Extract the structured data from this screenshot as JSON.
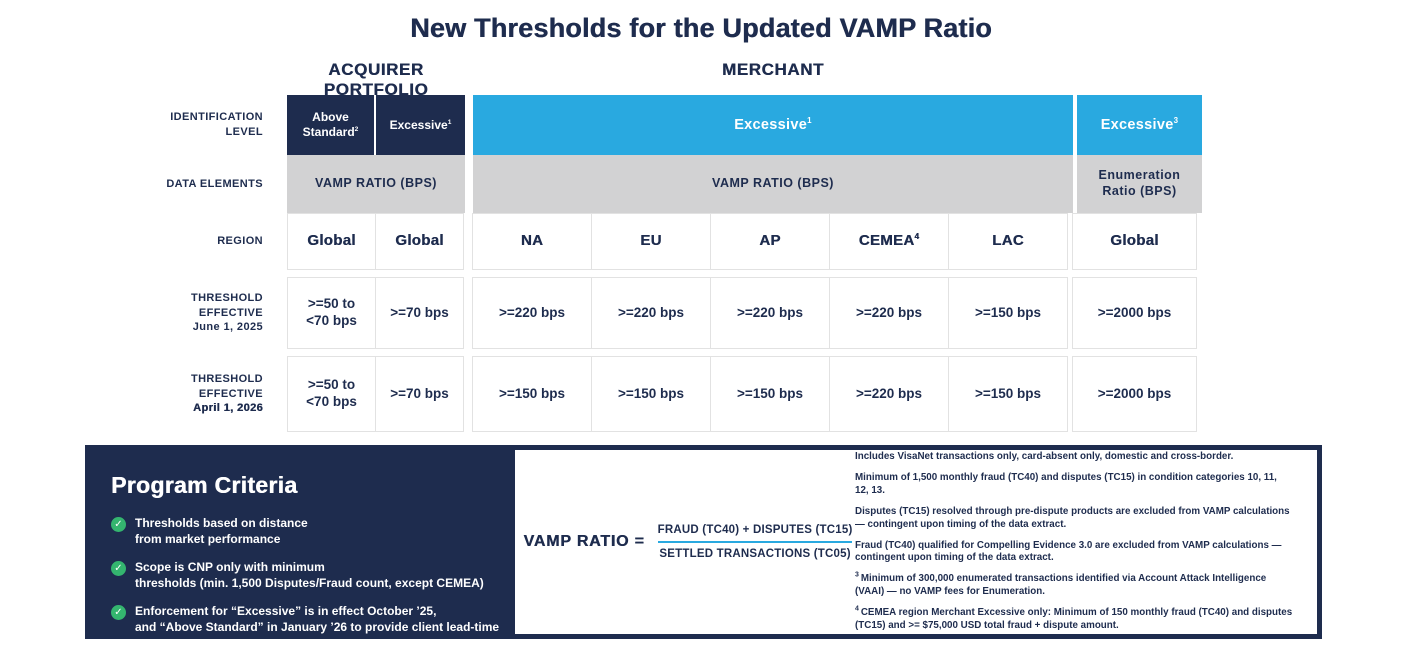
{
  "title": "New Thresholds for the Updated VAMP Ratio",
  "colors": {
    "navy": "#1E2C4E",
    "blue": "#29A9E0",
    "gray": "#D2D2D3",
    "green": "#34B56F",
    "white": "#FFFFFF"
  },
  "table": {
    "group_headers": {
      "acquirer": "ACQUIRER PORTFOLIO",
      "merchant": "MERCHANT"
    },
    "row_labels": {
      "identification_line1": "IDENTIFICATION",
      "identification_line2": "LEVEL",
      "data_elements": "DATA ELEMENTS",
      "region": "REGION",
      "threshold_line1": "THRESHOLD",
      "threshold_line2": "EFFECTIVE",
      "june_date": "June 1, 2025",
      "april_date": "April 1, 2026"
    },
    "identification_row": {
      "above_standard": {
        "text": "Above Standard",
        "sup": "2"
      },
      "acquirer_excessive": {
        "text": "Excessive",
        "sup": "1"
      },
      "merchant_excessive": {
        "text": "Excessive",
        "sup": "1"
      },
      "enum_excessive": {
        "text": "Excessive",
        "sup": "3"
      }
    },
    "data_elements_row": {
      "acquirer": "VAMP RATIO (BPS)",
      "merchant": "VAMP RATIO (BPS)",
      "enumeration": "Enumeration Ratio (BPS)"
    },
    "region_row": [
      {
        "text": "Global"
      },
      {
        "text": "Global"
      },
      {
        "text": "NA"
      },
      {
        "text": "EU"
      },
      {
        "text": "AP"
      },
      {
        "text": "CEMEA",
        "sup": "4"
      },
      {
        "text": "LAC"
      },
      {
        "text": "Global"
      }
    ],
    "june_row": [
      ">=50 to <70 bps",
      ">=70 bps",
      ">=220 bps",
      ">=220 bps",
      ">=220 bps",
      ">=220 bps",
      ">=150 bps",
      ">=2000 bps"
    ],
    "april_row": [
      ">=50 to <70 bps",
      ">=70 bps",
      ">=150 bps",
      ">=150 bps",
      ">=150 bps",
      ">=220 bps",
      ">=150 bps",
      ">=2000 bps"
    ]
  },
  "program_criteria": {
    "heading": "Program Criteria",
    "check_icon": "✓",
    "bullets": [
      {
        "line1": "Thresholds based on distance",
        "line2": "from market performance"
      },
      {
        "line1": "Scope is CNP only with minimum",
        "line2": "thresholds (min. 1,500 Disputes/Fraud count, except CEMEA)"
      },
      {
        "line1": "Enforcement for “Excessive” is in effect October ’25,",
        "line2": "and “Above Standard” in January ’26 to provide client lead-time"
      }
    ]
  },
  "formula": {
    "label": "VAMP RATIO =",
    "numerator": "FRAUD (TC40) + DISPUTES (TC15)",
    "denominator": "SETTLED TRANSACTIONS (TC05)"
  },
  "notes": [
    {
      "text": "Includes VisaNet transactions only, card-absent only, domestic and cross-border."
    },
    {
      "text": "Minimum of 1,500 monthly fraud (TC40) and disputes (TC15) in condition categories 10, 11, 12, 13."
    },
    {
      "text": "Disputes (TC15) resolved through pre-dispute products are excluded from VAMP calculations — contingent upon timing of the data extract."
    },
    {
      "text": "Fraud (TC40) qualified for Compelling Evidence 3.0 are excluded from VAMP calculations — contingent upon timing of the data extract."
    },
    {
      "sup": "3",
      "text": "Minimum of 300,000 enumerated transactions identified via Account Attack Intelligence (VAAI) — no VAMP fees for Enumeration."
    },
    {
      "sup": "4",
      "text": "CEMEA region Merchant Excessive only: Minimum of 150 monthly fraud (TC40) and disputes (TC15) and >= $75,000 USD total fraud + dispute amount."
    }
  ]
}
